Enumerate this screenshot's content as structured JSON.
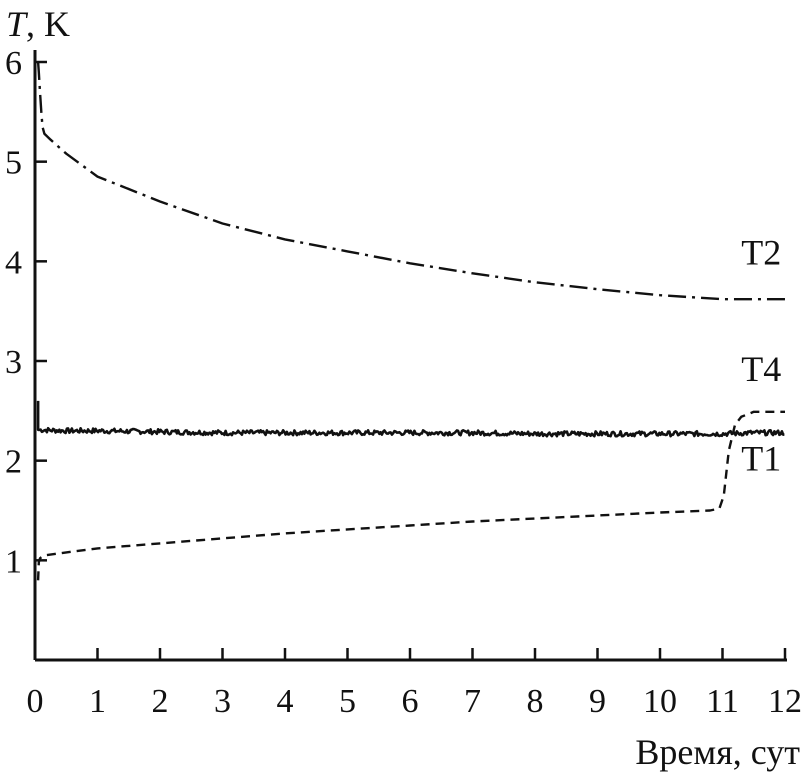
{
  "chart_data": {
    "type": "line",
    "xlabel": "Время, сут",
    "ylabel_symbol": "T",
    "ylabel_unit": ", K",
    "xlim": [
      0,
      12
    ],
    "ylim": [
      0,
      6
    ],
    "x_ticks": [
      0,
      1,
      2,
      3,
      4,
      5,
      6,
      7,
      8,
      9,
      10,
      11,
      12
    ],
    "y_ticks": [
      1,
      2,
      3,
      4,
      5,
      6
    ],
    "grid": false,
    "series": [
      {
        "name": "T2",
        "style": "dashdot",
        "x": [
          0.05,
          0.06,
          0.08,
          0.1,
          0.12,
          0.15,
          0.25,
          0.5,
          1,
          2,
          3,
          4,
          5,
          6,
          7,
          8,
          9,
          10,
          11,
          11.5,
          12
        ],
        "y": [
          6.0,
          5.9,
          5.7,
          5.5,
          5.35,
          5.28,
          5.22,
          5.08,
          4.85,
          4.6,
          4.38,
          4.22,
          4.1,
          3.98,
          3.88,
          3.79,
          3.72,
          3.66,
          3.62,
          3.62,
          3.62
        ]
      },
      {
        "name": "T4",
        "style": "solid",
        "x": [
          0.05,
          0.5,
          1,
          2,
          3,
          4,
          5,
          6,
          7,
          8,
          9,
          10,
          11,
          11.5,
          12
        ],
        "y": [
          2.31,
          2.3,
          2.3,
          2.29,
          2.28,
          2.28,
          2.28,
          2.28,
          2.28,
          2.27,
          2.27,
          2.27,
          2.27,
          2.28,
          2.28
        ],
        "noise": 0.025,
        "initial_spike": 2.6
      },
      {
        "name": "T1",
        "style": "dashed",
        "x": [
          0.05,
          0.06,
          0.08,
          0.1,
          0.15,
          0.5,
          1,
          2,
          3,
          4,
          5,
          6,
          7,
          8,
          9,
          10,
          10.8,
          10.95,
          11.02,
          11.1,
          11.2,
          11.3,
          11.5,
          12
        ],
        "y": [
          0.8,
          0.98,
          1.02,
          1.03,
          1.05,
          1.08,
          1.12,
          1.17,
          1.22,
          1.27,
          1.31,
          1.35,
          1.39,
          1.42,
          1.45,
          1.48,
          1.5,
          1.52,
          1.65,
          2.1,
          2.36,
          2.44,
          2.49,
          2.49
        ]
      }
    ],
    "series_labels": [
      {
        "text": "T2",
        "x": 11.3,
        "y": 3.97
      },
      {
        "text": "T4",
        "x": 11.3,
        "y": 2.8
      },
      {
        "text": "T1",
        "x": 11.3,
        "y": 1.9
      }
    ]
  }
}
